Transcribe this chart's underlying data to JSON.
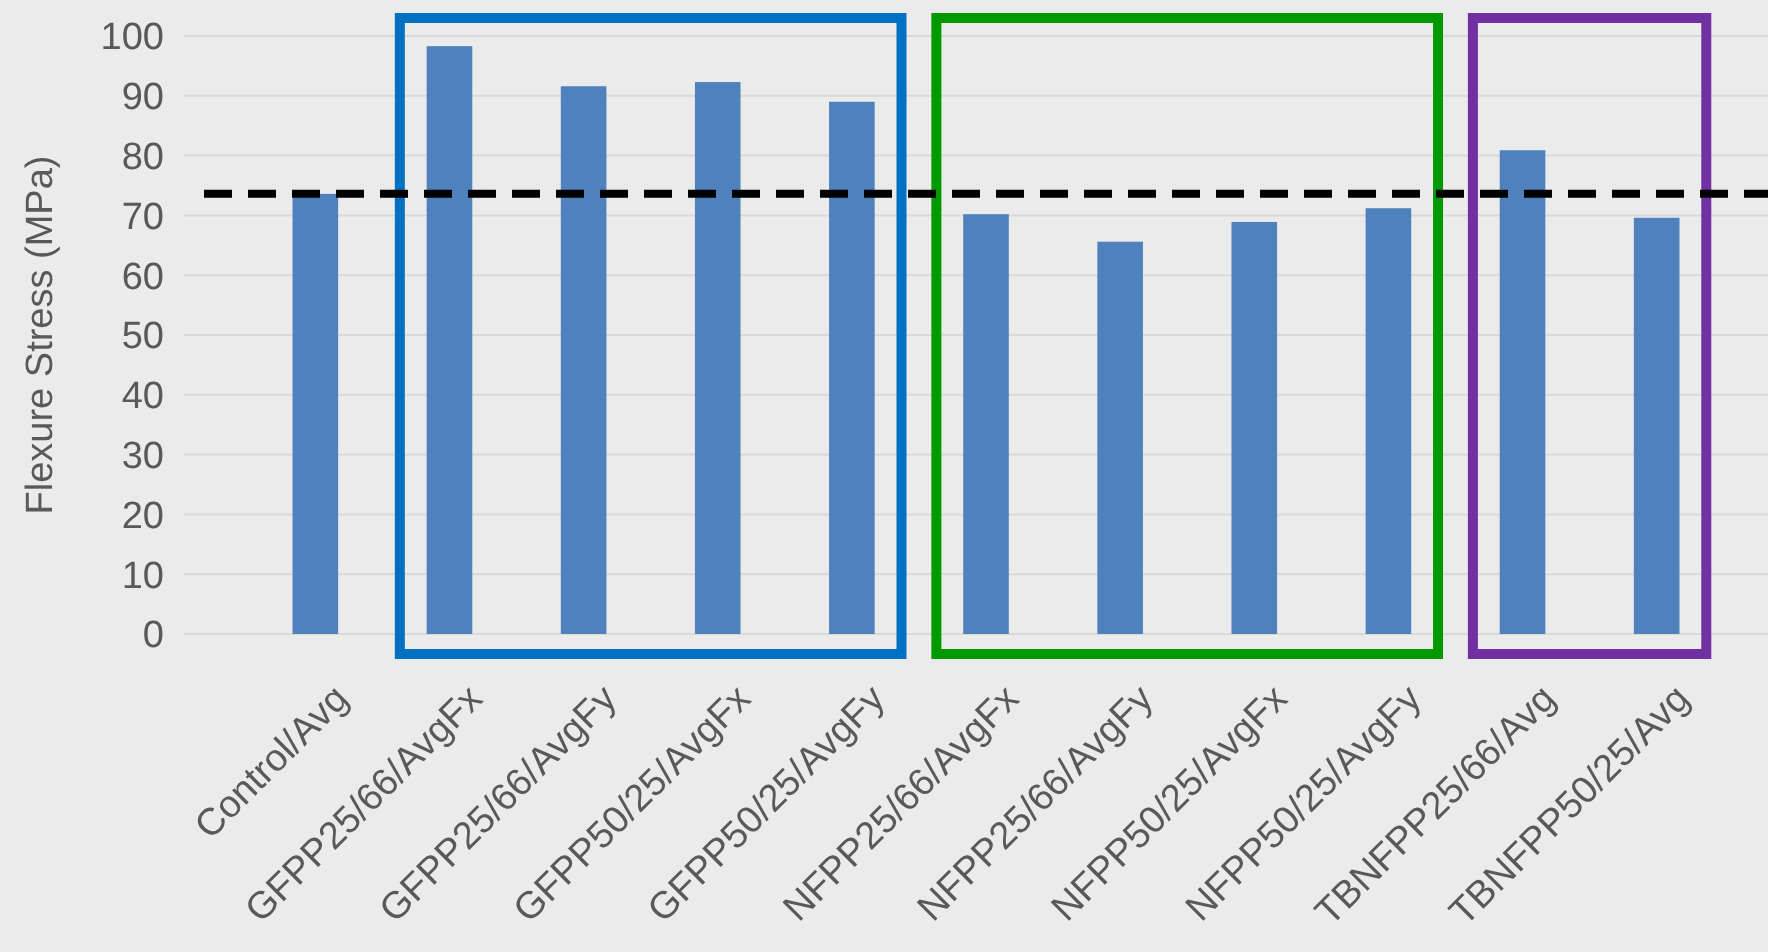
{
  "chart_data": {
    "type": "bar",
    "ylabel": "Flexure Stress (MPa)",
    "categories": [
      "Control/Avg",
      "GFPP25/66/AvgFx",
      "GFPP25/66/AvgFy",
      "GFPP50/25/AvgFx",
      "GFPP50/25/AvgFy",
      "NFPP25/66/AvgFx",
      "NFPP25/66/AvgFy",
      "NFPP50/25/AvgFx",
      "NFPP50/25/AvgFy",
      "TBNFPP25/66/Avg",
      "TBNFPP50/25/Avg"
    ],
    "values": [
      73.6,
      98.3,
      91.6,
      92.3,
      89,
      70.2,
      65.6,
      68.9,
      71.2,
      80.9,
      69.6
    ],
    "color": "#4f81bd",
    "ylim": [
      0,
      100
    ],
    "yticks": [
      0,
      10,
      20,
      30,
      40,
      50,
      60,
      70,
      80,
      90,
      100
    ],
    "grid": "y",
    "ref_lines": [
      {
        "axis": "y",
        "value": 73.6,
        "color": "#000000",
        "line_style": "dashed"
      }
    ]
  }
}
